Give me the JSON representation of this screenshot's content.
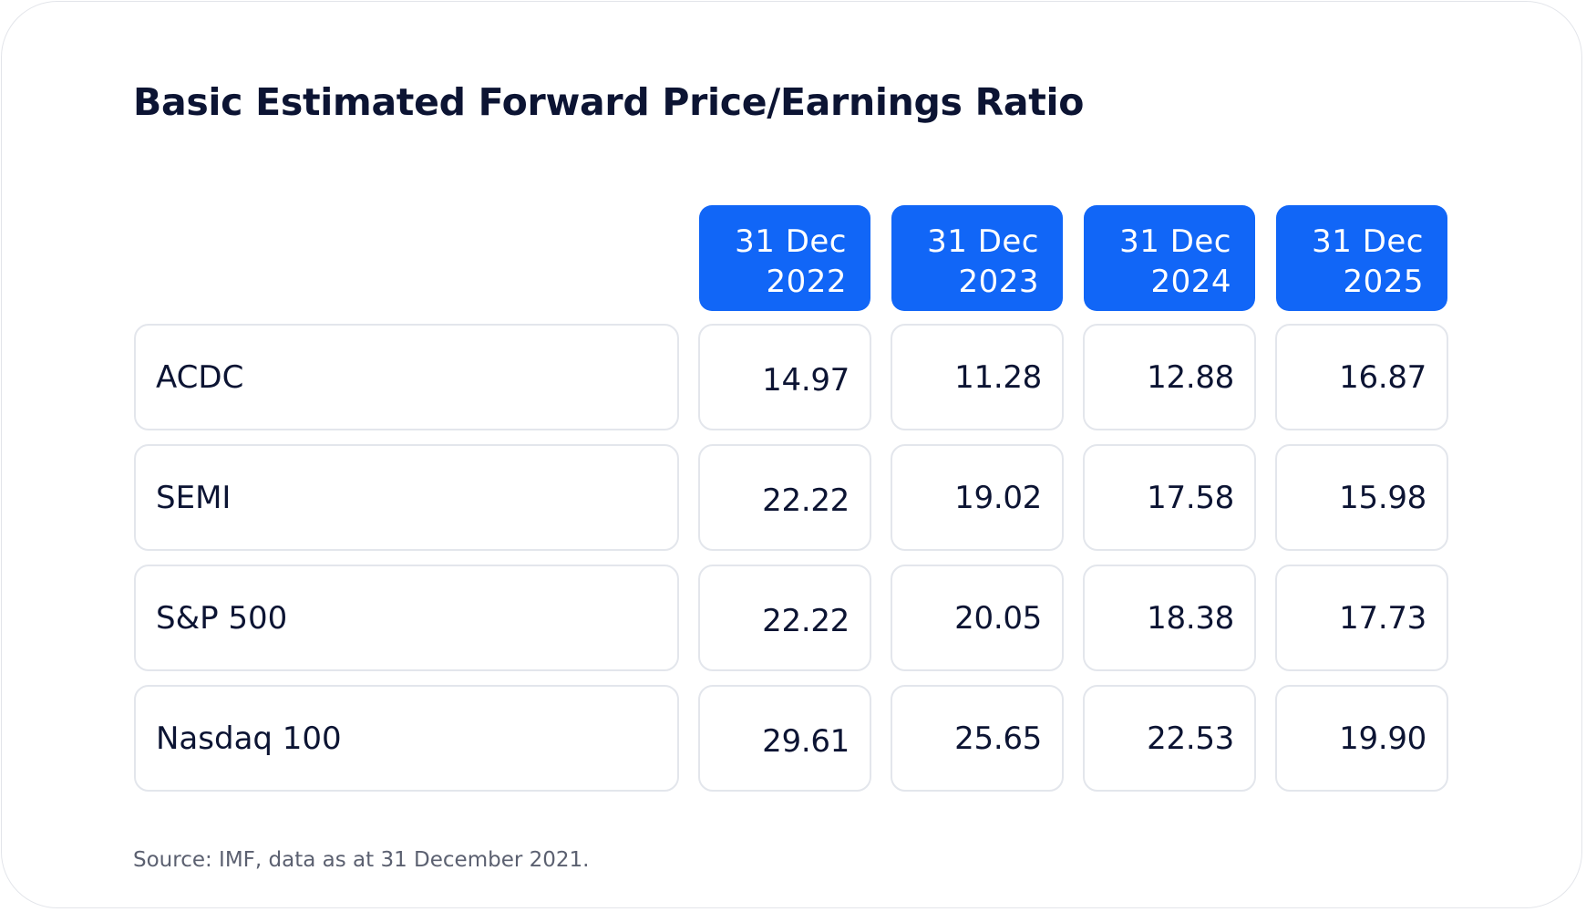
{
  "chart_data": {
    "type": "table",
    "title": "Basic Estimated Forward Price/Earnings Ratio",
    "columns": [
      {
        "day_month": "31 Dec",
        "year": "2022"
      },
      {
        "day_month": "31 Dec",
        "year": "2023"
      },
      {
        "day_month": "31 Dec",
        "year": "2024"
      },
      {
        "day_month": "31 Dec",
        "year": "2025"
      }
    ],
    "rows": [
      {
        "label": "ACDC",
        "values": [
          "14.97",
          "11.28",
          "12.88",
          "16.87"
        ]
      },
      {
        "label": "SEMI",
        "values": [
          "22.22",
          "19.02",
          "17.58",
          "15.98"
        ]
      },
      {
        "label": "S&P 500",
        "values": [
          "22.22",
          "20.05",
          "18.38",
          "17.73"
        ]
      },
      {
        "label": "Nasdaq 100",
        "values": [
          "29.61",
          "25.65",
          "22.53",
          "19.90"
        ]
      }
    ],
    "source": "Source: IMF, data as at 31 December 2021."
  },
  "colors": {
    "header_background": "#1166f7",
    "text": "#0c1433",
    "cell_border": "#e3e6ec",
    "source_text": "#5b6070"
  }
}
